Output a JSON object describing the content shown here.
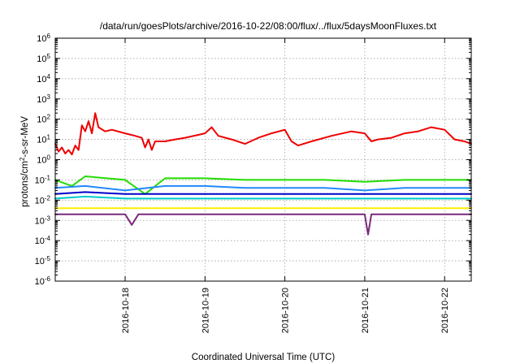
{
  "chart_data": {
    "type": "line",
    "title": "/data/run/goesPlots/archive/2016-10-22/08:00/flux/../flux/5daysMoonFluxes.txt",
    "xlabel": "Coordinated Universal Time (UTC)",
    "ylabel": {
      "base": "protons/cm",
      "sup": "2",
      "rest": "-s-sr-MeV"
    },
    "y_scale": "log",
    "ylim": [
      1e-06,
      1000000.0
    ],
    "y_ticks": [
      {
        "value": 1e-06,
        "base": "10",
        "exp": "-6"
      },
      {
        "value": 1e-05,
        "base": "10",
        "exp": "-5"
      },
      {
        "value": 0.0001,
        "base": "10",
        "exp": "-4"
      },
      {
        "value": 0.001,
        "base": "10",
        "exp": "-3"
      },
      {
        "value": 0.01,
        "base": "10",
        "exp": "-2"
      },
      {
        "value": 0.1,
        "base": "10",
        "exp": "-1"
      },
      {
        "value": 1,
        "base": "10",
        "exp": "0"
      },
      {
        "value": 10,
        "base": "10",
        "exp": "1"
      },
      {
        "value": 100,
        "base": "10",
        "exp": "2"
      },
      {
        "value": 1000,
        "base": "10",
        "exp": "3"
      },
      {
        "value": 10000,
        "base": "10",
        "exp": "4"
      },
      {
        "value": 100000,
        "base": "10",
        "exp": "5"
      },
      {
        "value": 1000000,
        "base": "10",
        "exp": "6"
      }
    ],
    "x_range": [
      "2016-10-17 03:00",
      "2016-10-22 08:00"
    ],
    "x_ticks": [
      {
        "value": "2016-10-18 00:00",
        "label": "2016-10-18"
      },
      {
        "value": "2016-10-19 00:00",
        "label": "2016-10-19"
      },
      {
        "value": "2016-10-20 00:00",
        "label": "2016-10-20"
      },
      {
        "value": "2016-10-21 00:00",
        "label": "2016-10-21"
      },
      {
        "value": "2016-10-22 00:00",
        "label": "2016-10-22"
      }
    ],
    "grid": true,
    "legend": "none",
    "series": [
      {
        "color": "#ee0000",
        "points": [
          [
            "2016-10-17 03:00",
            6
          ],
          [
            "2016-10-17 04:00",
            2.5
          ],
          [
            "2016-10-17 05:00",
            4
          ],
          [
            "2016-10-17 06:00",
            2
          ],
          [
            "2016-10-17 07:00",
            3
          ],
          [
            "2016-10-17 08:00",
            1.8
          ],
          [
            "2016-10-17 09:00",
            5
          ],
          [
            "2016-10-17 10:00",
            3
          ],
          [
            "2016-10-17 11:00",
            50
          ],
          [
            "2016-10-17 12:00",
            25
          ],
          [
            "2016-10-17 13:00",
            80
          ],
          [
            "2016-10-17 14:00",
            20
          ],
          [
            "2016-10-17 15:00",
            200
          ],
          [
            "2016-10-17 16:00",
            40
          ],
          [
            "2016-10-17 18:00",
            25
          ],
          [
            "2016-10-17 20:00",
            30
          ],
          [
            "2016-10-18 00:00",
            20
          ],
          [
            "2016-10-18 03:00",
            15
          ],
          [
            "2016-10-18 05:00",
            12
          ],
          [
            "2016-10-18 06:00",
            4
          ],
          [
            "2016-10-18 07:00",
            10
          ],
          [
            "2016-10-18 08:00",
            3
          ],
          [
            "2016-10-18 09:00",
            8
          ],
          [
            "2016-10-18 12:00",
            8
          ],
          [
            "2016-10-18 15:00",
            10
          ],
          [
            "2016-10-18 18:00",
            12
          ],
          [
            "2016-10-19 00:00",
            20
          ],
          [
            "2016-10-19 02:00",
            40
          ],
          [
            "2016-10-19 04:00",
            15
          ],
          [
            "2016-10-19 08:00",
            10
          ],
          [
            "2016-10-19 12:00",
            6
          ],
          [
            "2016-10-19 16:00",
            12
          ],
          [
            "2016-10-19 20:00",
            20
          ],
          [
            "2016-10-20 00:00",
            30
          ],
          [
            "2016-10-20 02:00",
            8
          ],
          [
            "2016-10-20 04:00",
            5
          ],
          [
            "2016-10-20 08:00",
            8
          ],
          [
            "2016-10-20 14:00",
            15
          ],
          [
            "2016-10-20 20:00",
            25
          ],
          [
            "2016-10-21 00:00",
            20
          ],
          [
            "2016-10-21 02:00",
            8
          ],
          [
            "2016-10-21 04:00",
            10
          ],
          [
            "2016-10-21 08:00",
            12
          ],
          [
            "2016-10-21 12:00",
            20
          ],
          [
            "2016-10-21 16:00",
            25
          ],
          [
            "2016-10-21 20:00",
            40
          ],
          [
            "2016-10-22 00:00",
            30
          ],
          [
            "2016-10-22 03:00",
            10
          ],
          [
            "2016-10-22 06:00",
            8
          ],
          [
            "2016-10-22 08:00",
            6
          ]
        ]
      },
      {
        "color": "#22dd00",
        "points": [
          [
            "2016-10-17 03:00",
            0.1
          ],
          [
            "2016-10-17 08:00",
            0.05
          ],
          [
            "2016-10-17 12:00",
            0.15
          ],
          [
            "2016-10-18 00:00",
            0.1
          ],
          [
            "2016-10-18 06:00",
            0.02
          ],
          [
            "2016-10-18 12:00",
            0.12
          ],
          [
            "2016-10-19 00:00",
            0.12
          ],
          [
            "2016-10-19 12:00",
            0.1
          ],
          [
            "2016-10-20 00:00",
            0.1
          ],
          [
            "2016-10-20 12:00",
            0.1
          ],
          [
            "2016-10-21 00:00",
            0.08
          ],
          [
            "2016-10-21 12:00",
            0.1
          ],
          [
            "2016-10-22 00:00",
            0.1
          ],
          [
            "2016-10-22 08:00",
            0.1
          ]
        ]
      },
      {
        "color": "#2288ff",
        "points": [
          [
            "2016-10-17 03:00",
            0.04
          ],
          [
            "2016-10-17 12:00",
            0.05
          ],
          [
            "2016-10-18 00:00",
            0.03
          ],
          [
            "2016-10-18 12:00",
            0.05
          ],
          [
            "2016-10-19 00:00",
            0.05
          ],
          [
            "2016-10-19 12:00",
            0.04
          ],
          [
            "2016-10-20 00:00",
            0.04
          ],
          [
            "2016-10-20 12:00",
            0.04
          ],
          [
            "2016-10-21 00:00",
            0.03
          ],
          [
            "2016-10-21 12:00",
            0.04
          ],
          [
            "2016-10-22 00:00",
            0.04
          ],
          [
            "2016-10-22 08:00",
            0.04
          ]
        ]
      },
      {
        "color": "#0000cc",
        "points": [
          [
            "2016-10-17 03:00",
            0.02
          ],
          [
            "2016-10-17 12:00",
            0.025
          ],
          [
            "2016-10-18 00:00",
            0.02
          ],
          [
            "2016-10-18 12:00",
            0.02
          ],
          [
            "2016-10-19 00:00",
            0.02
          ],
          [
            "2016-10-19 12:00",
            0.02
          ],
          [
            "2016-10-20 00:00",
            0.02
          ],
          [
            "2016-10-20 12:00",
            0.02
          ],
          [
            "2016-10-21 00:00",
            0.02
          ],
          [
            "2016-10-21 12:00",
            0.02
          ],
          [
            "2016-10-22 00:00",
            0.02
          ],
          [
            "2016-10-22 08:00",
            0.02
          ]
        ]
      },
      {
        "color": "#00cccc",
        "points": [
          [
            "2016-10-17 03:00",
            0.012
          ],
          [
            "2016-10-17 12:00",
            0.015
          ],
          [
            "2016-10-18 00:00",
            0.012
          ],
          [
            "2016-10-18 12:00",
            0.012
          ],
          [
            "2016-10-19 00:00",
            0.012
          ],
          [
            "2016-10-19 12:00",
            0.012
          ],
          [
            "2016-10-20 00:00",
            0.012
          ],
          [
            "2016-10-20 12:00",
            0.012
          ],
          [
            "2016-10-21 00:00",
            0.012
          ],
          [
            "2016-10-21 12:00",
            0.012
          ],
          [
            "2016-10-22 00:00",
            0.012
          ],
          [
            "2016-10-22 08:00",
            0.012
          ]
        ]
      },
      {
        "color": "#ffee00",
        "points": [
          [
            "2016-10-17 03:00",
            0.004
          ],
          [
            "2016-10-17 12:00",
            0.004
          ],
          [
            "2016-10-18 00:00",
            0.004
          ],
          [
            "2016-10-18 12:00",
            0.004
          ],
          [
            "2016-10-19 00:00",
            0.004
          ],
          [
            "2016-10-19 12:00",
            0.004
          ],
          [
            "2016-10-20 00:00",
            0.004
          ],
          [
            "2016-10-20 12:00",
            0.004
          ],
          [
            "2016-10-21 00:00",
            0.004
          ],
          [
            "2016-10-21 12:00",
            0.004
          ],
          [
            "2016-10-22 00:00",
            0.004
          ],
          [
            "2016-10-22 08:00",
            0.004
          ]
        ]
      },
      {
        "color": "#7a2a7a",
        "points": [
          [
            "2016-10-17 03:00",
            0.002
          ],
          [
            "2016-10-17 12:00",
            0.002
          ],
          [
            "2016-10-18 00:00",
            0.002
          ],
          [
            "2016-10-18 02:00",
            0.0006
          ],
          [
            "2016-10-18 04:00",
            0.002
          ],
          [
            "2016-10-18 12:00",
            0.002
          ],
          [
            "2016-10-19 00:00",
            0.002
          ],
          [
            "2016-10-19 12:00",
            0.002
          ],
          [
            "2016-10-20 00:00",
            0.002
          ],
          [
            "2016-10-20 12:00",
            0.002
          ],
          [
            "2016-10-21 00:00",
            0.002
          ],
          [
            "2016-10-21 01:00",
            0.0002
          ],
          [
            "2016-10-21 02:00",
            0.002
          ],
          [
            "2016-10-21 12:00",
            0.002
          ],
          [
            "2016-10-22 00:00",
            0.002
          ],
          [
            "2016-10-22 08:00",
            0.002
          ]
        ]
      }
    ]
  }
}
